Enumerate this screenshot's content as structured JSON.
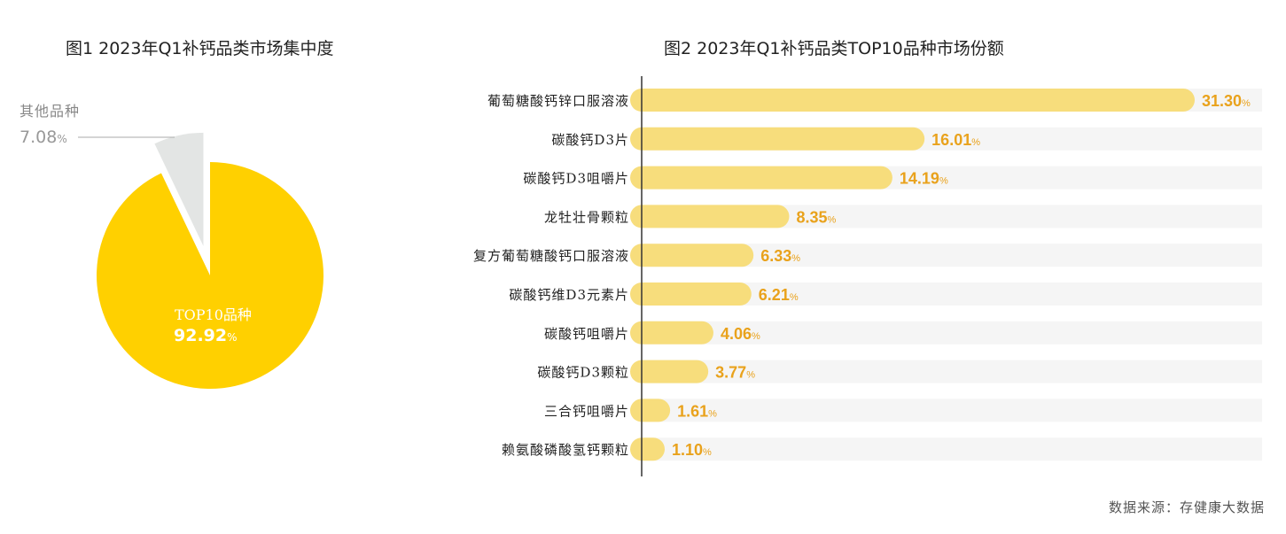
{
  "chart_data": [
    {
      "type": "pie",
      "title": "图1 2023年Q1补钙品类市场集中度",
      "slices": [
        {
          "label": "TOP10品种",
          "value": 92.92,
          "display": "92.92",
          "color": "#ffd000"
        },
        {
          "label": "其他品种",
          "value": 7.08,
          "display": "7.08",
          "color": "#e3e5e4"
        }
      ],
      "unit": "%"
    },
    {
      "type": "bar",
      "orientation": "horizontal",
      "title": "图2 2023年Q1补钙品类TOP10品种市场份额",
      "categories": [
        "葡萄糖酸钙锌口服溶液",
        "碳酸钙D3片",
        "碳酸钙D3咀嚼片",
        "龙牡壮骨颗粒",
        "复方葡萄糖酸钙口服溶液",
        "碳酸钙维D3元素片",
        "碳酸钙咀嚼片",
        "碳酸钙D3颗粒",
        "三合钙咀嚼片",
        "赖氨酸磷酸氢钙颗粒"
      ],
      "values": [
        31.3,
        16.01,
        14.19,
        8.35,
        6.33,
        6.21,
        4.06,
        3.77,
        1.61,
        1.1
      ],
      "value_labels": [
        "31.30",
        "16.01",
        "14.19",
        "8.35",
        "6.33",
        "6.21",
        "4.06",
        "3.77",
        "1.61",
        "1.10"
      ],
      "unit": "%",
      "xlim": [
        0,
        31.3
      ],
      "colors": {
        "bar": "#f7dd7c",
        "track": "#f5f5f5",
        "label": "#e9a21c"
      }
    }
  ],
  "source": "数据来源：存健康大数据"
}
